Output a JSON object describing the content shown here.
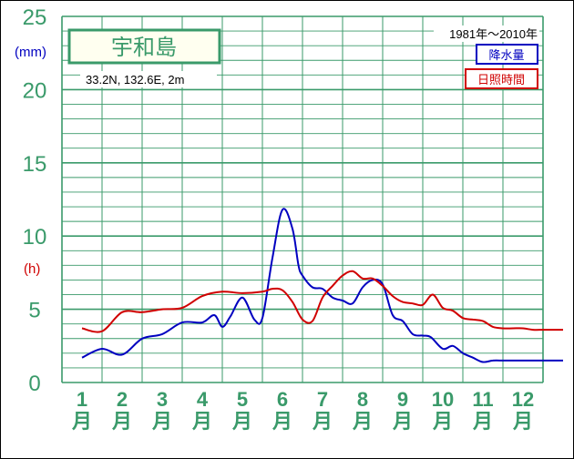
{
  "chart_data": {
    "type": "line",
    "title": "宇和島",
    "location": "33.2N,  132.6E,  2m",
    "period": "1981年〜2010年",
    "unit_precip": "(mm)",
    "unit_sun": "(h)",
    "yticks": [
      "25",
      "20",
      "15",
      "10",
      "5",
      "0"
    ],
    "ylim": [
      0,
      25
    ],
    "months": [
      "1",
      "2",
      "3",
      "4",
      "5",
      "6",
      "7",
      "8",
      "9",
      "10",
      "11",
      "12"
    ],
    "month_suffix": "月",
    "grid": true,
    "legend_position": "top-right",
    "series": [
      {
        "name": "降水量",
        "color": "#0000c0",
        "x": [
          0.5,
          1.0,
          1.5,
          2.0,
          2.5,
          3.0,
          3.5,
          3.8,
          4.0,
          4.2,
          4.5,
          4.8,
          5.0,
          5.25,
          5.5,
          5.75,
          5.9,
          6.0,
          6.25,
          6.5,
          6.75,
          7.0,
          7.25,
          7.5,
          7.75,
          8.0,
          8.25,
          8.5,
          8.75,
          9.0,
          9.2,
          9.5,
          9.75,
          10.0,
          10.25,
          10.5,
          10.75,
          11.0,
          11.25,
          11.5,
          11.75,
          12.0,
          12.25,
          12.5
        ],
        "y": [
          1.7,
          2.3,
          1.9,
          3.0,
          3.3,
          4.1,
          4.1,
          4.6,
          3.8,
          4.5,
          5.8,
          4.3,
          4.4,
          8.5,
          11.8,
          10.5,
          8.0,
          7.3,
          6.5,
          6.4,
          5.8,
          5.6,
          5.4,
          6.5,
          7.0,
          6.7,
          4.6,
          4.2,
          3.3,
          3.2,
          3.1,
          2.3,
          2.5,
          2.0,
          1.7,
          1.4,
          1.5,
          1.5,
          1.5,
          1.5,
          1.5,
          1.5,
          1.5,
          1.5
        ]
      },
      {
        "name": "日照時間",
        "color": "#d00000",
        "x": [
          0.5,
          1.0,
          1.5,
          2.0,
          2.5,
          3.0,
          3.5,
          4.0,
          4.5,
          5.0,
          5.25,
          5.5,
          5.75,
          6.0,
          6.25,
          6.5,
          6.75,
          7.0,
          7.25,
          7.5,
          7.75,
          8.0,
          8.25,
          8.5,
          8.75,
          9.0,
          9.25,
          9.5,
          9.75,
          10.0,
          10.25,
          10.5,
          10.75,
          11.0,
          11.25,
          11.5,
          11.75,
          12.0,
          12.25,
          12.5
        ],
        "y": [
          3.7,
          3.5,
          4.8,
          4.8,
          5.0,
          5.1,
          5.9,
          6.2,
          6.1,
          6.2,
          6.4,
          6.3,
          5.5,
          4.3,
          4.2,
          5.8,
          6.6,
          7.3,
          7.6,
          7.1,
          7.1,
          6.6,
          5.9,
          5.5,
          5.4,
          5.3,
          6.0,
          5.1,
          4.9,
          4.4,
          4.3,
          4.2,
          3.8,
          3.7,
          3.7,
          3.7,
          3.6,
          3.6,
          3.6,
          3.6
        ]
      }
    ]
  }
}
